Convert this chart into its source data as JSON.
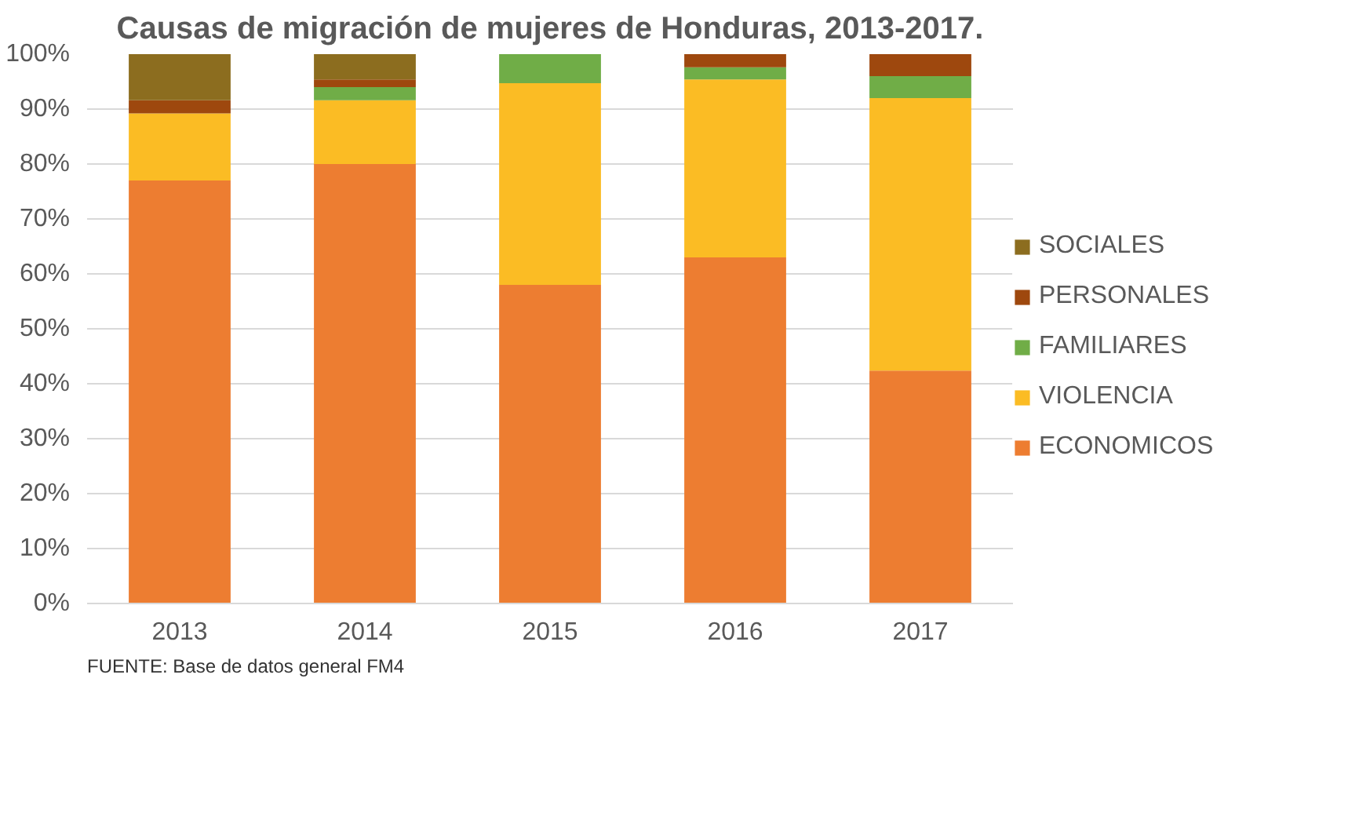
{
  "chart_data": {
    "type": "bar",
    "stacked": true,
    "title": "Causas de migración de mujeres de Honduras, 2013-2017.",
    "categories": [
      "2013",
      "2014",
      "2015",
      "2016",
      "2017"
    ],
    "series": [
      {
        "name": "ECONOMICOS",
        "color": "#ed7d31",
        "values": [
          77,
          80,
          58,
          63,
          42.4
        ]
      },
      {
        "name": "VIOLENCIA",
        "color": "#fbbc24",
        "values": [
          12.2,
          11.6,
          36.7,
          32.4,
          49.6
        ]
      },
      {
        "name": "FAMILIARES",
        "color": "#70ad47",
        "values": [
          0,
          2.4,
          5.3,
          2.2,
          4.0
        ]
      },
      {
        "name": "PERSONALES",
        "color": "#9e480e",
        "values": [
          2.4,
          1.4,
          0,
          2.4,
          4.0
        ]
      },
      {
        "name": "SOCIALES",
        "color": "#8c6d1f",
        "values": [
          8.4,
          4.6,
          0,
          0,
          0
        ]
      }
    ],
    "ylim": [
      0,
      100
    ],
    "yticks": [
      {
        "value": 0,
        "label": "0%"
      },
      {
        "value": 10,
        "label": "10%"
      },
      {
        "value": 20,
        "label": "20%"
      },
      {
        "value": 30,
        "label": "30%"
      },
      {
        "value": 40,
        "label": "40%"
      },
      {
        "value": 50,
        "label": "50%"
      },
      {
        "value": 60,
        "label": "60%"
      },
      {
        "value": 70,
        "label": "70%"
      },
      {
        "value": 80,
        "label": "80%"
      },
      {
        "value": 90,
        "label": "90%"
      },
      {
        "value": 100,
        "label": "100%"
      }
    ],
    "grid": "y",
    "legend": "right",
    "annotations": [
      "FUENTE: Base de datos general FM4"
    ]
  }
}
